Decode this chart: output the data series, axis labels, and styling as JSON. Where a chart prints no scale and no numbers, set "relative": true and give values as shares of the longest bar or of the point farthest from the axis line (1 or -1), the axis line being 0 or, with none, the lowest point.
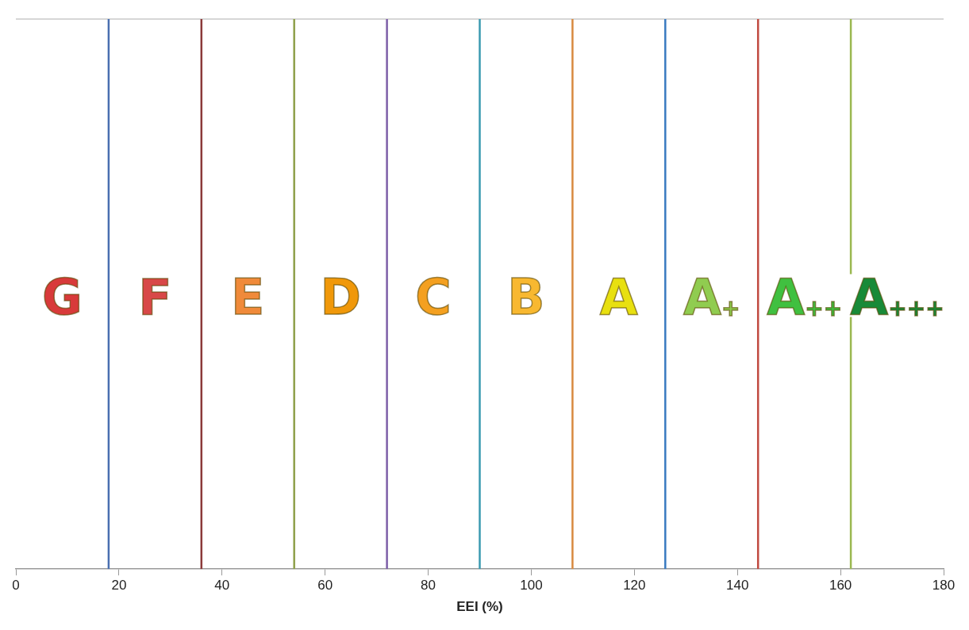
{
  "chart_data": {
    "type": "line",
    "relative": true,
    "marker": "none",
    "xlabel": "EEI (%)",
    "xlim": [
      0,
      180
    ],
    "xticks": [
      0,
      20,
      40,
      60,
      80,
      100,
      120,
      140,
      160,
      180
    ],
    "legend": false,
    "series": [
      {
        "color": "#4a6fb0",
        "x": [
          18,
          18
        ],
        "values": [
          0,
          1
        ]
      },
      {
        "color": "#8b3a3a",
        "x": [
          36,
          36
        ],
        "values": [
          0,
          1
        ]
      },
      {
        "color": "#8ea04a",
        "x": [
          54,
          54
        ],
        "values": [
          0,
          1
        ]
      },
      {
        "color": "#7d5fa8",
        "x": [
          72,
          72
        ],
        "values": [
          0,
          1
        ]
      },
      {
        "color": "#3a9ab0",
        "x": [
          90,
          90
        ],
        "values": [
          0,
          1
        ]
      },
      {
        "color": "#d88a40",
        "x": [
          108,
          108
        ],
        "values": [
          0,
          1
        ]
      },
      {
        "color": "#3a7ac0",
        "x": [
          126,
          126
        ],
        "values": [
          0,
          1
        ]
      },
      {
        "color": "#c04a40",
        "x": [
          144,
          144
        ],
        "values": [
          0,
          1
        ]
      },
      {
        "color": "#9ab850",
        "x": [
          162,
          162
        ],
        "values": [
          0,
          1
        ]
      }
    ],
    "annotations": [
      "G",
      "F",
      "E",
      "D",
      "C",
      "B",
      "A",
      "A$_{+}$",
      "A$_{++}$",
      "A$_{+++}$"
    ]
  }
}
